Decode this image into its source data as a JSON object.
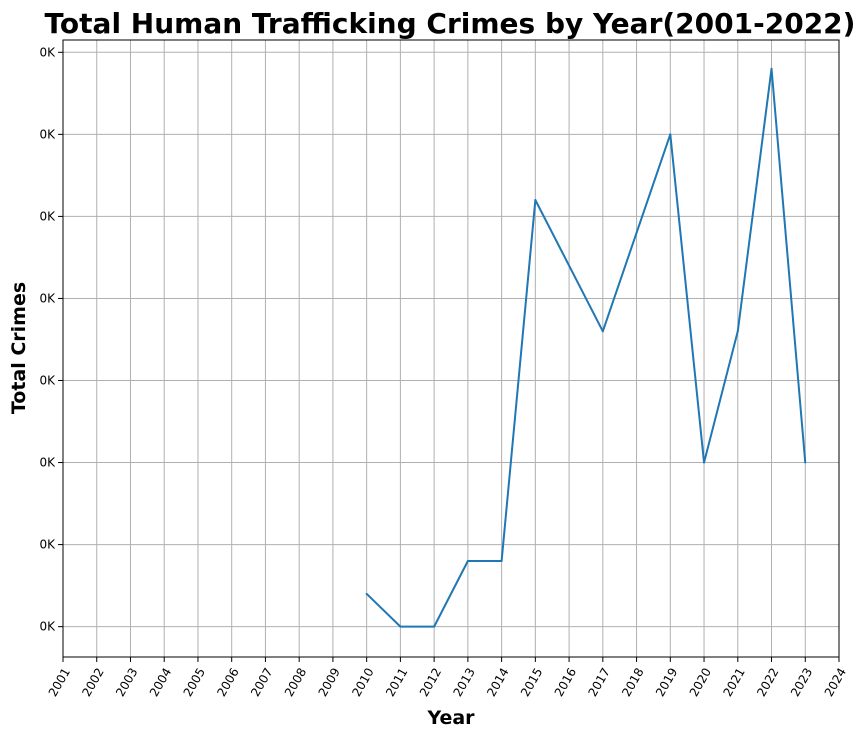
{
  "chart_data": {
    "type": "line",
    "title": "Total Human Trafficking Crimes by Year(2001-2022)",
    "xlabel": "Year",
    "ylabel": "Total Crimes",
    "x_ticks": [
      "2001",
      "2002",
      "2003",
      "2004",
      "2005",
      "2006",
      "2007",
      "2008",
      "2009",
      "2010",
      "2011",
      "2012",
      "2013",
      "2014",
      "2015",
      "2016",
      "2017",
      "2018",
      "2019",
      "2020",
      "2021",
      "2022",
      "2023",
      "2024"
    ],
    "y_ticks": [
      {
        "value": 1,
        "label": "0K"
      },
      {
        "value": 2,
        "label": "0K"
      },
      {
        "value": 3,
        "label": "0K"
      },
      {
        "value": 4,
        "label": "0K"
      },
      {
        "value": 5,
        "label": "0K"
      },
      {
        "value": 6,
        "label": "0K"
      },
      {
        "value": 7,
        "label": "0K"
      },
      {
        "value": 8,
        "label": "0K"
      }
    ],
    "xlim": [
      2001,
      2024
    ],
    "ylim": [
      0.63,
      8.15
    ],
    "grid": true,
    "series": [
      {
        "color": "#1f77b4",
        "x": [
          2010,
          2011,
          2012,
          2013,
          2014,
          2015,
          2017,
          2019,
          2020,
          2021,
          2022,
          2023
        ],
        "y": [
          1.4,
          1,
          1,
          1.8,
          1.8,
          6.2,
          4.6,
          7,
          3,
          4.6,
          7.8,
          3
        ]
      }
    ]
  }
}
